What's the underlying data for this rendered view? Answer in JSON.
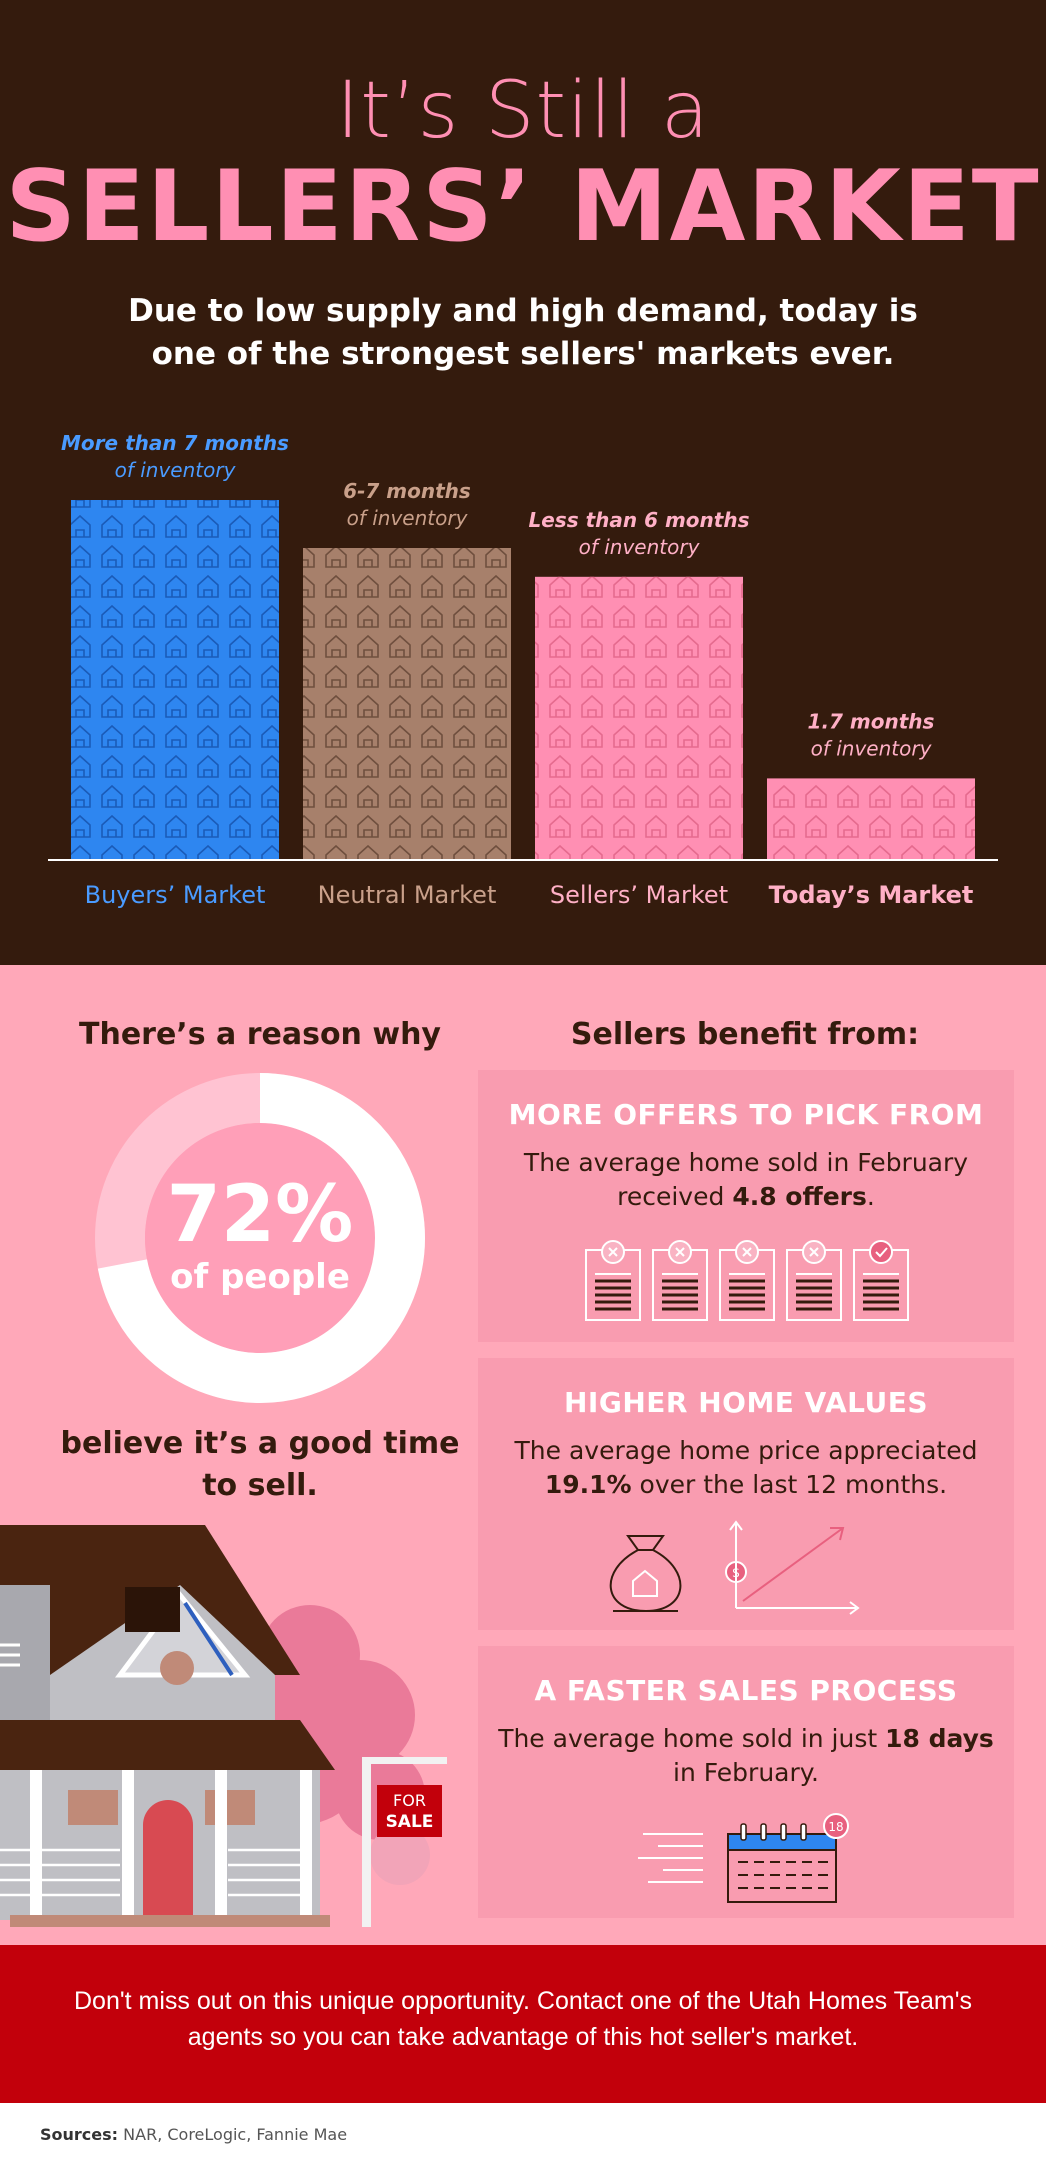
{
  "hero": {
    "subtitle": "It’s Still a",
    "title": "SELLERS’ MARKET",
    "description": "Due to low supply and high demand, today is one of the strongest sellers' markets ever."
  },
  "chart_data": {
    "type": "bar",
    "categories": [
      "Buyers’ Market",
      "Neutral Market",
      "Sellers’ Market",
      "Today’s Market"
    ],
    "values": [
      7.5,
      6.5,
      5.9,
      1.7
    ],
    "bar_labels": [
      [
        "More than 7 months",
        "of inventory"
      ],
      [
        "6-7 months",
        "of inventory"
      ],
      [
        "Less than 6 months",
        "of inventory"
      ],
      [
        "1.7 months",
        "of inventory"
      ]
    ],
    "colors": [
      "#2e86f0",
      "#a7806b",
      "#ff8fb3",
      "#ff8fb3"
    ],
    "label_colors": [
      "#4a9bff",
      "#c9a08a",
      "#ffb0c6",
      "#ffb0c6"
    ],
    "highlight_category": "Today’s Market",
    "ylim": [
      0,
      7.5
    ],
    "xlabel": "",
    "ylabel": "",
    "grid": false
  },
  "reason": {
    "title": "There’s a reason why",
    "value": "72%",
    "unit": "of people",
    "percent": 72,
    "caption": "believe it’s a good time to sell."
  },
  "for_sale_sign": {
    "line1": "FOR",
    "line2": "SALE"
  },
  "benefits": {
    "title": "Sellers benefit from:",
    "cards": [
      {
        "title": "MORE OFFERS TO PICK FROM",
        "text_pre": "The average home sold in February received ",
        "text_bold": "4.8 offers",
        "text_post": ".",
        "icon": "offer-documents-icon"
      },
      {
        "title": "HIGHER HOME VALUES",
        "text_pre": "The average home price appreciated ",
        "text_bold": "19.1%",
        "text_post": " over the last 12 months.",
        "icon": "money-bag-growth-icon"
      },
      {
        "title": "A FASTER SALES PROCESS",
        "text_pre": "The average home sold in just ",
        "text_bold": "18 days",
        "text_post": " in February.",
        "icon": "calendar-icon",
        "icon_badge": "18"
      }
    ]
  },
  "cta": {
    "text": "Don't miss out on this unique opportunity. Contact one of the Utah Homes Team's agents so you can take advantage of this hot seller's market."
  },
  "sources": {
    "label": "Sources:",
    "text": "NAR, CoreLogic, Fannie Mae"
  },
  "colors": {
    "dark_brown": "#341b0d",
    "pink": "#ff8fb3",
    "light_pink_bg": "#ffa8b9",
    "card_pink": "#f99cb0",
    "blue": "#2e86f0",
    "tan": "#a7806b",
    "red": "#c2000b"
  }
}
